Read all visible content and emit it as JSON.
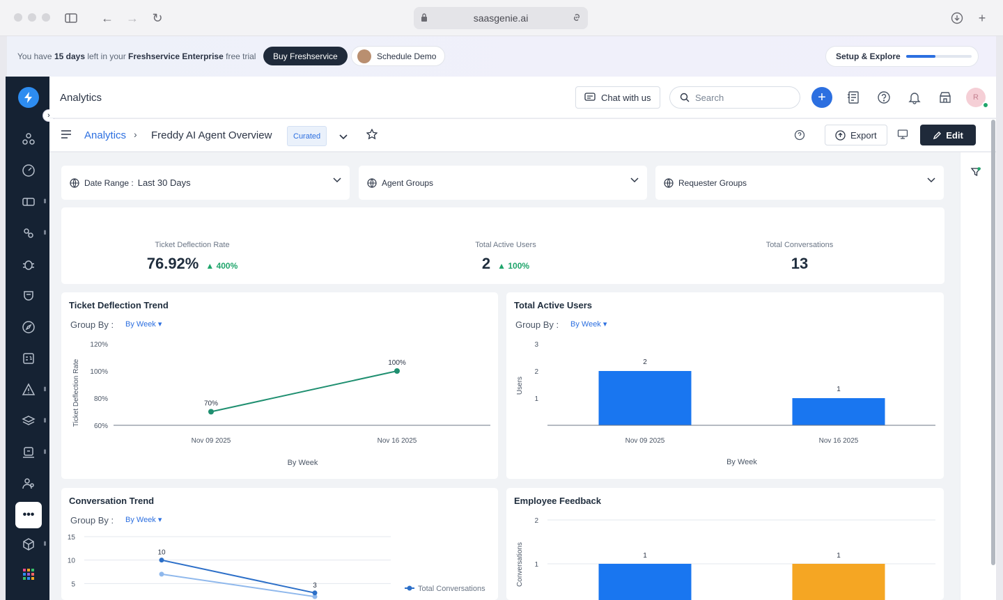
{
  "browser": {
    "url": "saasgenie.ai"
  },
  "trial": {
    "text_pre": "You have ",
    "days": "15 days",
    "text_mid": " left in your ",
    "plan": "Freshservice Enterprise",
    "text_post": " free trial",
    "buy_label": "Buy Freshservice",
    "demo_label": "Schedule Demo",
    "setup_label": "Setup & Explore",
    "setup_progress": 0.45
  },
  "header": {
    "title": "Analytics",
    "chat_label": "Chat with us",
    "search_placeholder": "Search",
    "avatar_initial": "R"
  },
  "subheader": {
    "breadcrumb_root": "Analytics",
    "breadcrumb_sep": "›",
    "breadcrumb_current": "Freddy AI Agent Overview",
    "badge": "Curated",
    "export_label": "Export",
    "edit_label": "Edit"
  },
  "filters": {
    "date_label": "Date Range : ",
    "date_value": "Last 30 Days",
    "agent_groups": "Agent Groups",
    "requester_groups": "Requester Groups"
  },
  "kpis": [
    {
      "label": "Ticket Deflection Rate",
      "value": "76.92%",
      "delta": "▲ 400%"
    },
    {
      "label": "Total Active Users",
      "value": "2",
      "delta": "▲ 100%"
    },
    {
      "label": "Total Conversations",
      "value": "13",
      "delta": ""
    }
  ],
  "cards": {
    "deflection": {
      "title": "Ticket Deflection Trend",
      "group_label": "Group By :",
      "group_value": "By Week ▾"
    },
    "active_users": {
      "title": "Total Active Users",
      "group_label": "Group By :",
      "group_value": "By Week ▾"
    },
    "conversation": {
      "title": "Conversation Trend",
      "group_label": "Group By :",
      "group_value": "By Week ▾"
    },
    "feedback": {
      "title": "Employee Feedback"
    }
  },
  "chart_data": [
    {
      "type": "line",
      "title": "Ticket Deflection Trend",
      "xlabel": "By Week",
      "ylabel": "Ticket Deflection Rate",
      "categories": [
        "Nov 09 2025",
        "Nov 16 2025"
      ],
      "yticks": [
        "60%",
        "80%",
        "100%",
        "120%"
      ],
      "ylim": [
        60,
        120
      ],
      "series": [
        {
          "values": [
            70,
            100
          ],
          "labels": [
            "70%",
            "100%"
          ],
          "color": "#1f8f70"
        }
      ],
      "grid": false
    },
    {
      "type": "bar",
      "title": "Total Active Users",
      "xlabel": "By Week",
      "ylabel": "Users",
      "categories": [
        "Nov 09 2025",
        "Nov 16 2025"
      ],
      "yticks": [
        "1",
        "2",
        "3"
      ],
      "ylim": [
        0,
        3
      ],
      "values": [
        2,
        1
      ],
      "color": "#1976f0",
      "grid": false
    },
    {
      "type": "line",
      "title": "Conversation Trend",
      "yticks": [
        "5",
        "10",
        "15"
      ],
      "ylim": [
        0,
        15
      ],
      "series": [
        {
          "name": "Total Conversations",
          "values": [
            10,
            3
          ],
          "labels": [
            "10",
            "3"
          ],
          "color": "#2c6fc8"
        },
        {
          "values": [
            7,
            2.2
          ],
          "color": "#8fb8ec"
        }
      ],
      "grid": true,
      "legend": "right"
    },
    {
      "type": "bar",
      "title": "Employee Feedback",
      "ylabel": "Conversations",
      "yticks": [
        "1",
        "2"
      ],
      "ylim": [
        0,
        2
      ],
      "values": [
        1,
        1
      ],
      "colors": [
        "#1976f0",
        "#f5a623"
      ],
      "grid": true
    }
  ]
}
